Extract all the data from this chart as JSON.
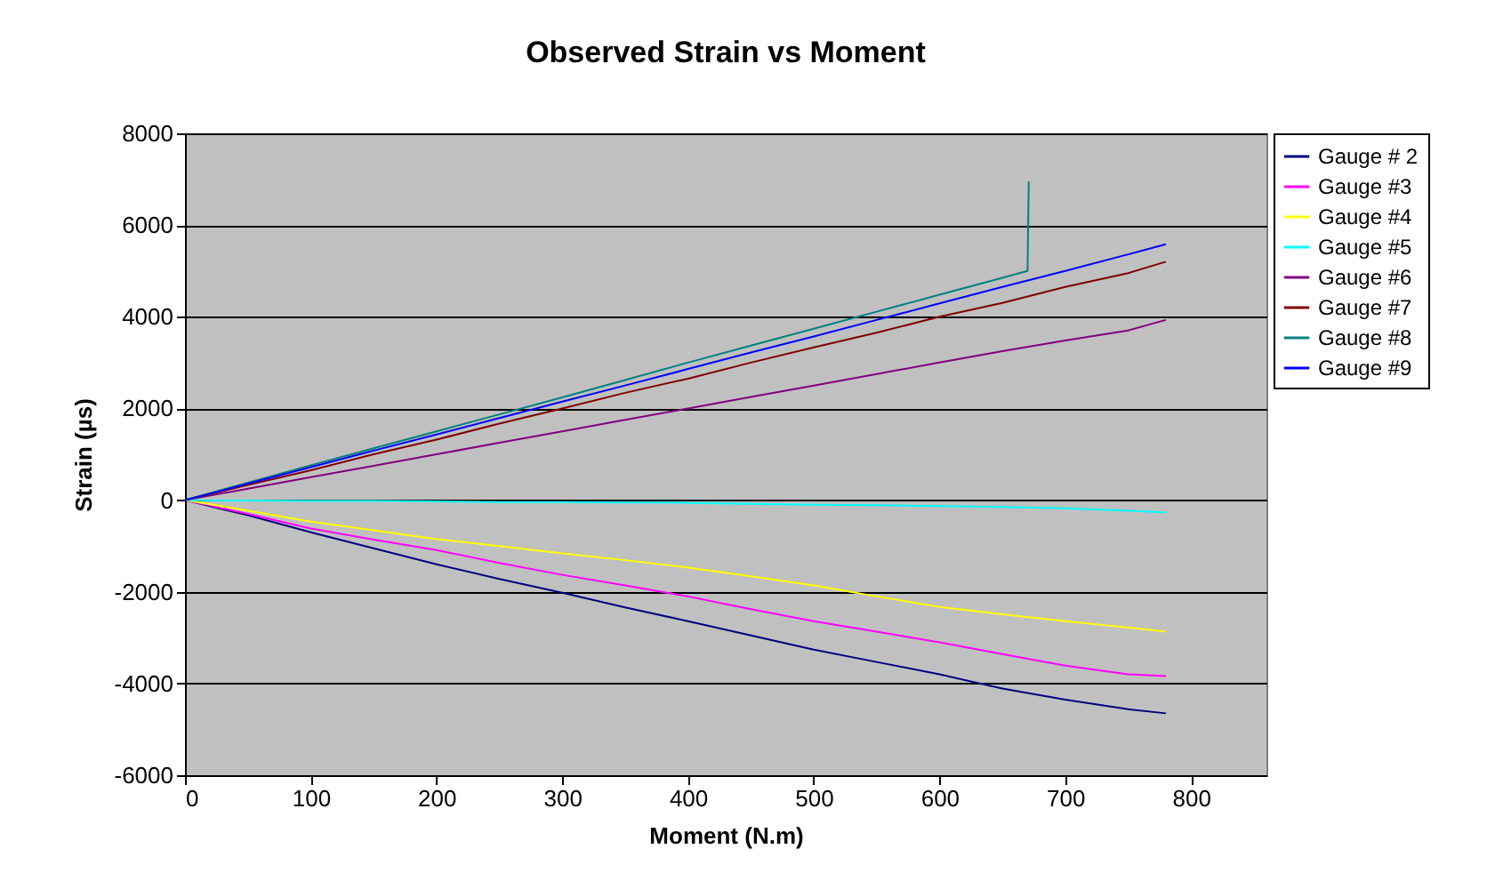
{
  "chart_data": {
    "type": "line",
    "title": "Observed Strain vs Moment",
    "xlabel": "Moment (N.m)",
    "ylabel": "Strain (µs)",
    "x": [
      0,
      50,
      100,
      150,
      200,
      250,
      300,
      350,
      400,
      450,
      500,
      550,
      600,
      650,
      700,
      750,
      780
    ],
    "xlim": [
      0,
      860
    ],
    "xticks": [
      0,
      100,
      200,
      300,
      400,
      500,
      600,
      700,
      800
    ],
    "ylim": [
      -6000,
      8000
    ],
    "yticks": [
      -6000,
      -4000,
      -2000,
      0,
      2000,
      4000,
      6000,
      8000
    ],
    "grid": "y",
    "legend": "right",
    "marker": "none",
    "line_style": "solid",
    "series": [
      {
        "name": "Gauge # 2",
        "color": "#000080",
        "values": [
          0,
          -330,
          -700,
          -1050,
          -1400,
          -1720,
          -2020,
          -2340,
          -2640,
          -2950,
          -3260,
          -3530,
          -3800,
          -4110,
          -4350,
          -4560,
          -4650
        ]
      },
      {
        "name": "Gauge #3",
        "color": "#ff00ff",
        "values": [
          0,
          -300,
          -620,
          -860,
          -1090,
          -1370,
          -1630,
          -1860,
          -2100,
          -2380,
          -2640,
          -2870,
          -3100,
          -3360,
          -3610,
          -3800,
          -3840
        ]
      },
      {
        "name": "Gauge #4",
        "color": "#ffff00",
        "values": [
          0,
          -230,
          -470,
          -660,
          -850,
          -1000,
          -1160,
          -1310,
          -1470,
          -1660,
          -1860,
          -2100,
          -2330,
          -2490,
          -2640,
          -2780,
          -2870
        ]
      },
      {
        "name": "Gauge #5",
        "color": "#00ffff",
        "values": [
          0,
          -10,
          -20,
          -20,
          -30,
          -40,
          -40,
          -50,
          -60,
          -80,
          -100,
          -110,
          -130,
          -150,
          -180,
          -230,
          -270
        ]
      },
      {
        "name": "Gauge #6",
        "color": "#800080",
        "values": [
          0,
          250,
          500,
          750,
          1000,
          1250,
          1500,
          1750,
          2000,
          2250,
          2500,
          2750,
          3000,
          3250,
          3480,
          3700,
          3930
        ]
      },
      {
        "name": "Gauge #7",
        "color": "#800000",
        "values": [
          0,
          330,
          650,
          1000,
          1320,
          1670,
          2000,
          2340,
          2650,
          3000,
          3330,
          3650,
          4000,
          4300,
          4650,
          4950,
          5200
        ]
      },
      {
        "name": "Gauge #8",
        "color": "#008080",
        "x": [
          0,
          50,
          100,
          150,
          200,
          250,
          300,
          350,
          400,
          450,
          500,
          550,
          600,
          650,
          670,
          671
        ],
        "values": [
          0,
          380,
          760,
          1130,
          1500,
          1870,
          2240,
          2620,
          3000,
          3370,
          3740,
          4110,
          4480,
          4850,
          5000,
          6950
        ]
      },
      {
        "name": "Gauge #9",
        "color": "#0000ff",
        "values": [
          0,
          360,
          720,
          1080,
          1430,
          1790,
          2150,
          2500,
          2860,
          3220,
          3570,
          3930,
          4290,
          4650,
          5000,
          5360,
          5580
        ]
      }
    ]
  }
}
